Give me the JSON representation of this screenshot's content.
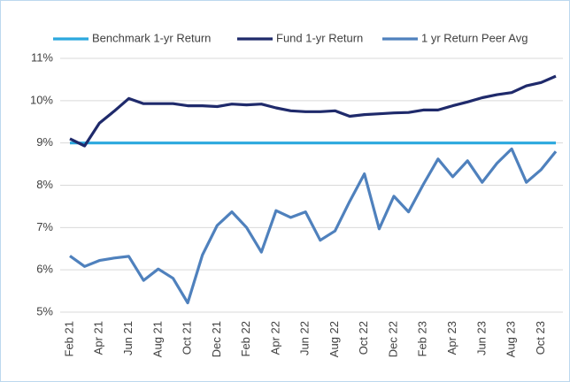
{
  "chart_data": {
    "type": "line",
    "categories": [
      "Feb 21",
      null,
      "Apr 21",
      null,
      "Jun 21",
      null,
      "Aug 21",
      null,
      "Oct 21",
      null,
      "Dec 21",
      null,
      "Feb 22",
      null,
      "Apr 22",
      null,
      "Jun 22",
      null,
      "Aug 22",
      null,
      "Oct 22",
      null,
      "Dec 22",
      null,
      "Feb 23",
      null,
      "Apr 23",
      null,
      "Jun 23",
      null,
      "Aug 23",
      null,
      "Oct 23",
      null
    ],
    "series": [
      {
        "name": "Benchmark 1-yr Return",
        "color": "#2ba8de",
        "values": [
          9,
          9,
          9,
          9,
          9,
          9,
          9,
          9,
          9,
          9,
          9,
          9,
          9,
          9,
          9,
          9,
          9,
          9,
          9,
          9,
          9,
          9,
          9,
          9,
          9,
          9,
          9,
          9,
          9,
          9,
          9,
          9,
          9,
          9
        ]
      },
      {
        "name": "Fund 1-yr Return",
        "color": "#1f2a6b",
        "values": [
          9.1,
          8.93,
          9.47,
          9.75,
          10.05,
          9.93,
          9.93,
          9.93,
          9.88,
          9.88,
          9.86,
          9.92,
          9.9,
          9.92,
          9.83,
          9.76,
          9.74,
          9.74,
          9.76,
          9.63,
          9.67,
          9.69,
          9.71,
          9.72,
          9.78,
          9.78,
          9.88,
          9.97,
          10.07,
          10.14,
          10.19,
          10.35,
          10.43,
          10.58
        ]
      },
      {
        "name": "1 yr Return Peer Avg",
        "color": "#4f81bd",
        "values": [
          6.33,
          6.08,
          6.22,
          6.28,
          6.32,
          5.75,
          6.02,
          5.8,
          5.22,
          6.35,
          7.05,
          7.37,
          7.0,
          6.42,
          7.4,
          7.24,
          7.37,
          6.7,
          6.92,
          7.62,
          8.27,
          6.97,
          7.74,
          7.37,
          8.02,
          8.62,
          8.2,
          8.58,
          8.07,
          8.52,
          8.86,
          8.07,
          8.37,
          8.8
        ]
      }
    ],
    "ylim": [
      5,
      11
    ],
    "yticks": [
      {
        "value": 5,
        "label": "5%"
      },
      {
        "value": 6,
        "label": "6%"
      },
      {
        "value": 7,
        "label": "7%"
      },
      {
        "value": 8,
        "label": "8%"
      },
      {
        "value": 9,
        "label": "9%"
      },
      {
        "value": 10,
        "label": "10%"
      },
      {
        "value": 11,
        "label": "11%"
      }
    ],
    "grid": true,
    "legend": "top"
  }
}
